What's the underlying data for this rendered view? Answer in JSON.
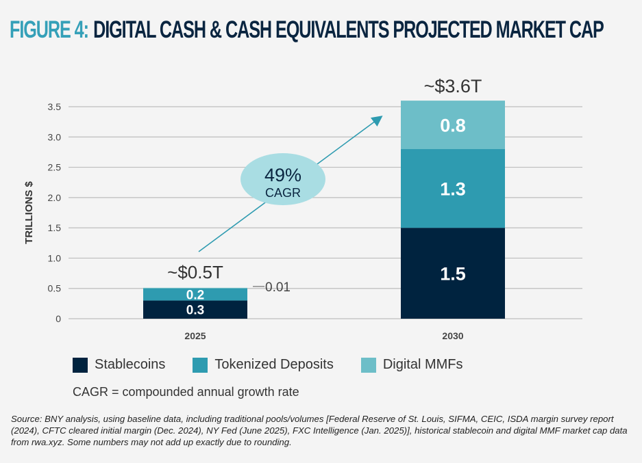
{
  "title": {
    "figure": "FIGURE 4:",
    "text": "DIGITAL CASH & CASH EQUIVALENTS PROJECTED MARKET CAP"
  },
  "chart_data": {
    "type": "bar",
    "stacked": true,
    "categories": [
      "2025",
      "2030"
    ],
    "series": [
      {
        "name": "Stablecoins",
        "values": [
          0.3,
          1.5
        ],
        "labels": [
          "0.3",
          "1.5"
        ],
        "color": "#00233f"
      },
      {
        "name": "Tokenized Deposits",
        "values": [
          0.2,
          1.3
        ],
        "labels": [
          "0.2",
          "1.3"
        ],
        "color": "#2e9bb0"
      },
      {
        "name": "Digital MMFs",
        "values": [
          0.01,
          0.8
        ],
        "labels": [
          "0.01",
          "0.8"
        ],
        "color": "#6dbec8"
      }
    ],
    "totals": [
      "~$0.5T",
      "~$3.6T"
    ],
    "ylabel": "TRILLIONS $",
    "ylim": [
      0,
      3.5
    ],
    "yticks": [
      "0",
      "0.5",
      "1.0",
      "1.5",
      "2.0",
      "2.5",
      "3.0",
      "3.5"
    ],
    "grid": true,
    "legend_position": "bottom",
    "annotation": {
      "value": "49%",
      "label": "CAGR"
    }
  },
  "cagr_note": "CAGR = compounded annual growth rate",
  "source": "Source: BNY analysis, using baseline data, including traditional pools/volumes [Federal Reserve of St. Louis, SIFMA, CEIC, ISDA margin survey report (2024), CFTC cleared initial margin (Dec. 2024), NY Fed (June 2025), FXC Intelligence (Jan. 2025)], historical stablecoin and digital MMF market cap data from rwa.xyz. Some numbers may not add up exactly due to rounding."
}
